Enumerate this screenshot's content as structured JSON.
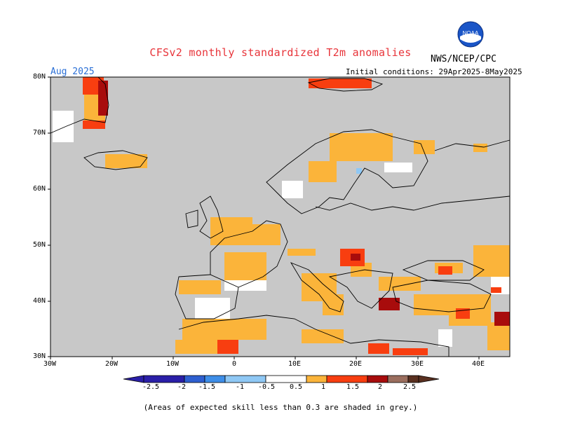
{
  "header": {
    "title": "CFSv2 monthly standardized T2m anomalies",
    "agency": "NWS/NCEP/CPC",
    "month": "Aug 2025",
    "initial_conditions": "Initial conditions: 29Apr2025-8May2025",
    "logo_text": "NOAA"
  },
  "map": {
    "land_color": "#c8c8c8",
    "ocean_color": "#c8c8c8",
    "coast_color": "#000000",
    "lat_labels": [
      "80N",
      "70N",
      "60N",
      "50N",
      "40N",
      "30N"
    ],
    "lon_labels": [
      "30W",
      "20W",
      "10W",
      "0",
      "10E",
      "20E",
      "30E",
      "40E"
    ]
  },
  "colorbar": {
    "labels": [
      "-2.5",
      "-2",
      "-1.5",
      "-1",
      "-0.5",
      "0.5",
      "1",
      "1.5",
      "2",
      "2.5"
    ],
    "colors": [
      "#2a1fa8",
      "#2e5fd0",
      "#3e8ee8",
      "#8fc8f5",
      "#ffffff",
      "#fbb43a",
      "#f83e10",
      "#a80c0c",
      "#9b6e5e",
      "#5a3020"
    ]
  },
  "footnote": "(Areas of expected skill less than 0.3 are shaded in grey.)"
}
